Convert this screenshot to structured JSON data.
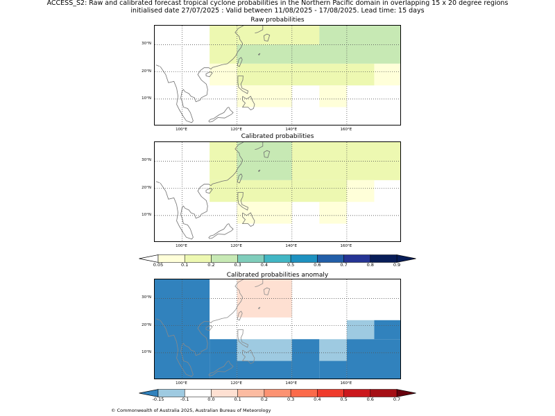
{
  "title": {
    "line1": "ACCESS_S2: Raw and calibrated forecast tropical cyclone probabilities in the Northern Pacific domain in overlapping 15 x 20 degree regions",
    "line2": "initialised date 27/07/2025 :  Valid between 11/08/2025 - 17/08/2025. Lead time: 15 days"
  },
  "panels": [
    {
      "title": "Raw probabilities",
      "cells": [
        {
          "lon": [
            110,
            120
          ],
          "lat": [
            23,
            37
          ],
          "color": "#edf8b1"
        },
        {
          "lon": [
            120,
            150
          ],
          "lat": [
            30,
            37
          ],
          "color": "#edf8b1"
        },
        {
          "lon": [
            150,
            180
          ],
          "lat": [
            30,
            37
          ],
          "color": "#c7e9b4"
        },
        {
          "lon": [
            120,
            180
          ],
          "lat": [
            23,
            30
          ],
          "color": "#c7e9b4"
        },
        {
          "lon": [
            110,
            120
          ],
          "lat": [
            15,
            23
          ],
          "color": "#ffffd9"
        },
        {
          "lon": [
            120,
            170
          ],
          "lat": [
            15,
            23
          ],
          "color": "#edf8b1"
        },
        {
          "lon": [
            170,
            180
          ],
          "lat": [
            15,
            23
          ],
          "color": "#ffffd9"
        },
        {
          "lon": [
            120,
            140
          ],
          "lat": [
            7,
            15
          ],
          "color": "#ffffd9"
        },
        {
          "lon": [
            150,
            160
          ],
          "lat": [
            7,
            15
          ],
          "color": "#ffffd9"
        }
      ]
    },
    {
      "title": "Calibrated probabilities",
      "cells": [
        {
          "lon": [
            110,
            120
          ],
          "lat": [
            23,
            37
          ],
          "color": "#edf8b1"
        },
        {
          "lon": [
            120,
            140
          ],
          "lat": [
            23,
            37
          ],
          "color": "#c7e9b4"
        },
        {
          "lon": [
            140,
            180
          ],
          "lat": [
            23,
            37
          ],
          "color": "#edf8b1"
        },
        {
          "lon": [
            110,
            160
          ],
          "lat": [
            15,
            23
          ],
          "color": "#edf8b1"
        },
        {
          "lon": [
            160,
            170
          ],
          "lat": [
            15,
            23
          ],
          "color": "#ffffd9"
        },
        {
          "lon": [
            120,
            140
          ],
          "lat": [
            7,
            15
          ],
          "color": "#ffffd9"
        },
        {
          "lon": [
            150,
            160
          ],
          "lat": [
            7,
            15
          ],
          "color": "#ffffd9"
        }
      ]
    },
    {
      "title": "Calibrated probabilities anomaly",
      "cells": [
        {
          "lon": [
            90,
            110
          ],
          "lat": [
            0,
            37
          ],
          "color": "#3182bd"
        },
        {
          "lon": [
            110,
            120
          ],
          "lat": [
            0,
            15
          ],
          "color": "#3182bd"
        },
        {
          "lon": [
            120,
            140
          ],
          "lat": [
            23,
            37
          ],
          "color": "#fee0d2"
        },
        {
          "lon": [
            120,
            140
          ],
          "lat": [
            7,
            15
          ],
          "color": "#9ecae1"
        },
        {
          "lon": [
            120,
            140
          ],
          "lat": [
            0,
            7
          ],
          "color": "#3182bd"
        },
        {
          "lon": [
            140,
            150
          ],
          "lat": [
            0,
            15
          ],
          "color": "#3182bd"
        },
        {
          "lon": [
            150,
            160
          ],
          "lat": [
            7,
            15
          ],
          "color": "#9ecae1"
        },
        {
          "lon": [
            150,
            160
          ],
          "lat": [
            0,
            7
          ],
          "color": "#3182bd"
        },
        {
          "lon": [
            160,
            170
          ],
          "lat": [
            15,
            22
          ],
          "color": "#9ecae1"
        },
        {
          "lon": [
            170,
            180
          ],
          "lat": [
            15,
            22
          ],
          "color": "#3182bd"
        },
        {
          "lon": [
            160,
            180
          ],
          "lat": [
            0,
            15
          ],
          "color": "#3182bd"
        }
      ]
    }
  ],
  "axes": {
    "x_ticks": [
      "100°E",
      "120°E",
      "140°E",
      "160°E"
    ],
    "x_values": [
      100,
      120,
      140,
      160
    ],
    "y_ticks": [
      "10°N",
      "20°N",
      "30°N"
    ],
    "y_values": [
      10,
      20,
      30
    ]
  },
  "colorbars": [
    {
      "labels": [
        "0.05",
        "0.1",
        "0.2",
        "0.3",
        "0.4",
        "0.5",
        "0.6",
        "0.7",
        "0.8",
        "0.9"
      ],
      "colors": [
        "#ffffd9",
        "#edf8b1",
        "#c7e9b4",
        "#7fcdbb",
        "#41b6c4",
        "#1d91c0",
        "#225ea8",
        "#253494",
        "#081d58"
      ],
      "under_color": "#ffffff",
      "over_color": "#081d58"
    },
    {
      "labels": [
        "-0.15",
        "-0.1",
        "0.0",
        "0.1",
        "0.2",
        "0.3",
        "0.4",
        "0.5",
        "0.6",
        "0.7"
      ],
      "colors": [
        "#9ecae1",
        "#ffffff",
        "#fee0d2",
        "#fcbba1",
        "#fc9272",
        "#fb6a4a",
        "#ef3b2c",
        "#cb181d",
        "#a50f15"
      ],
      "under_color": "#3182bd",
      "over_color": "#67000d"
    }
  ],
  "footer": "© Commonwealth of Australia 2025, Australian Bureau of Meteorology"
}
